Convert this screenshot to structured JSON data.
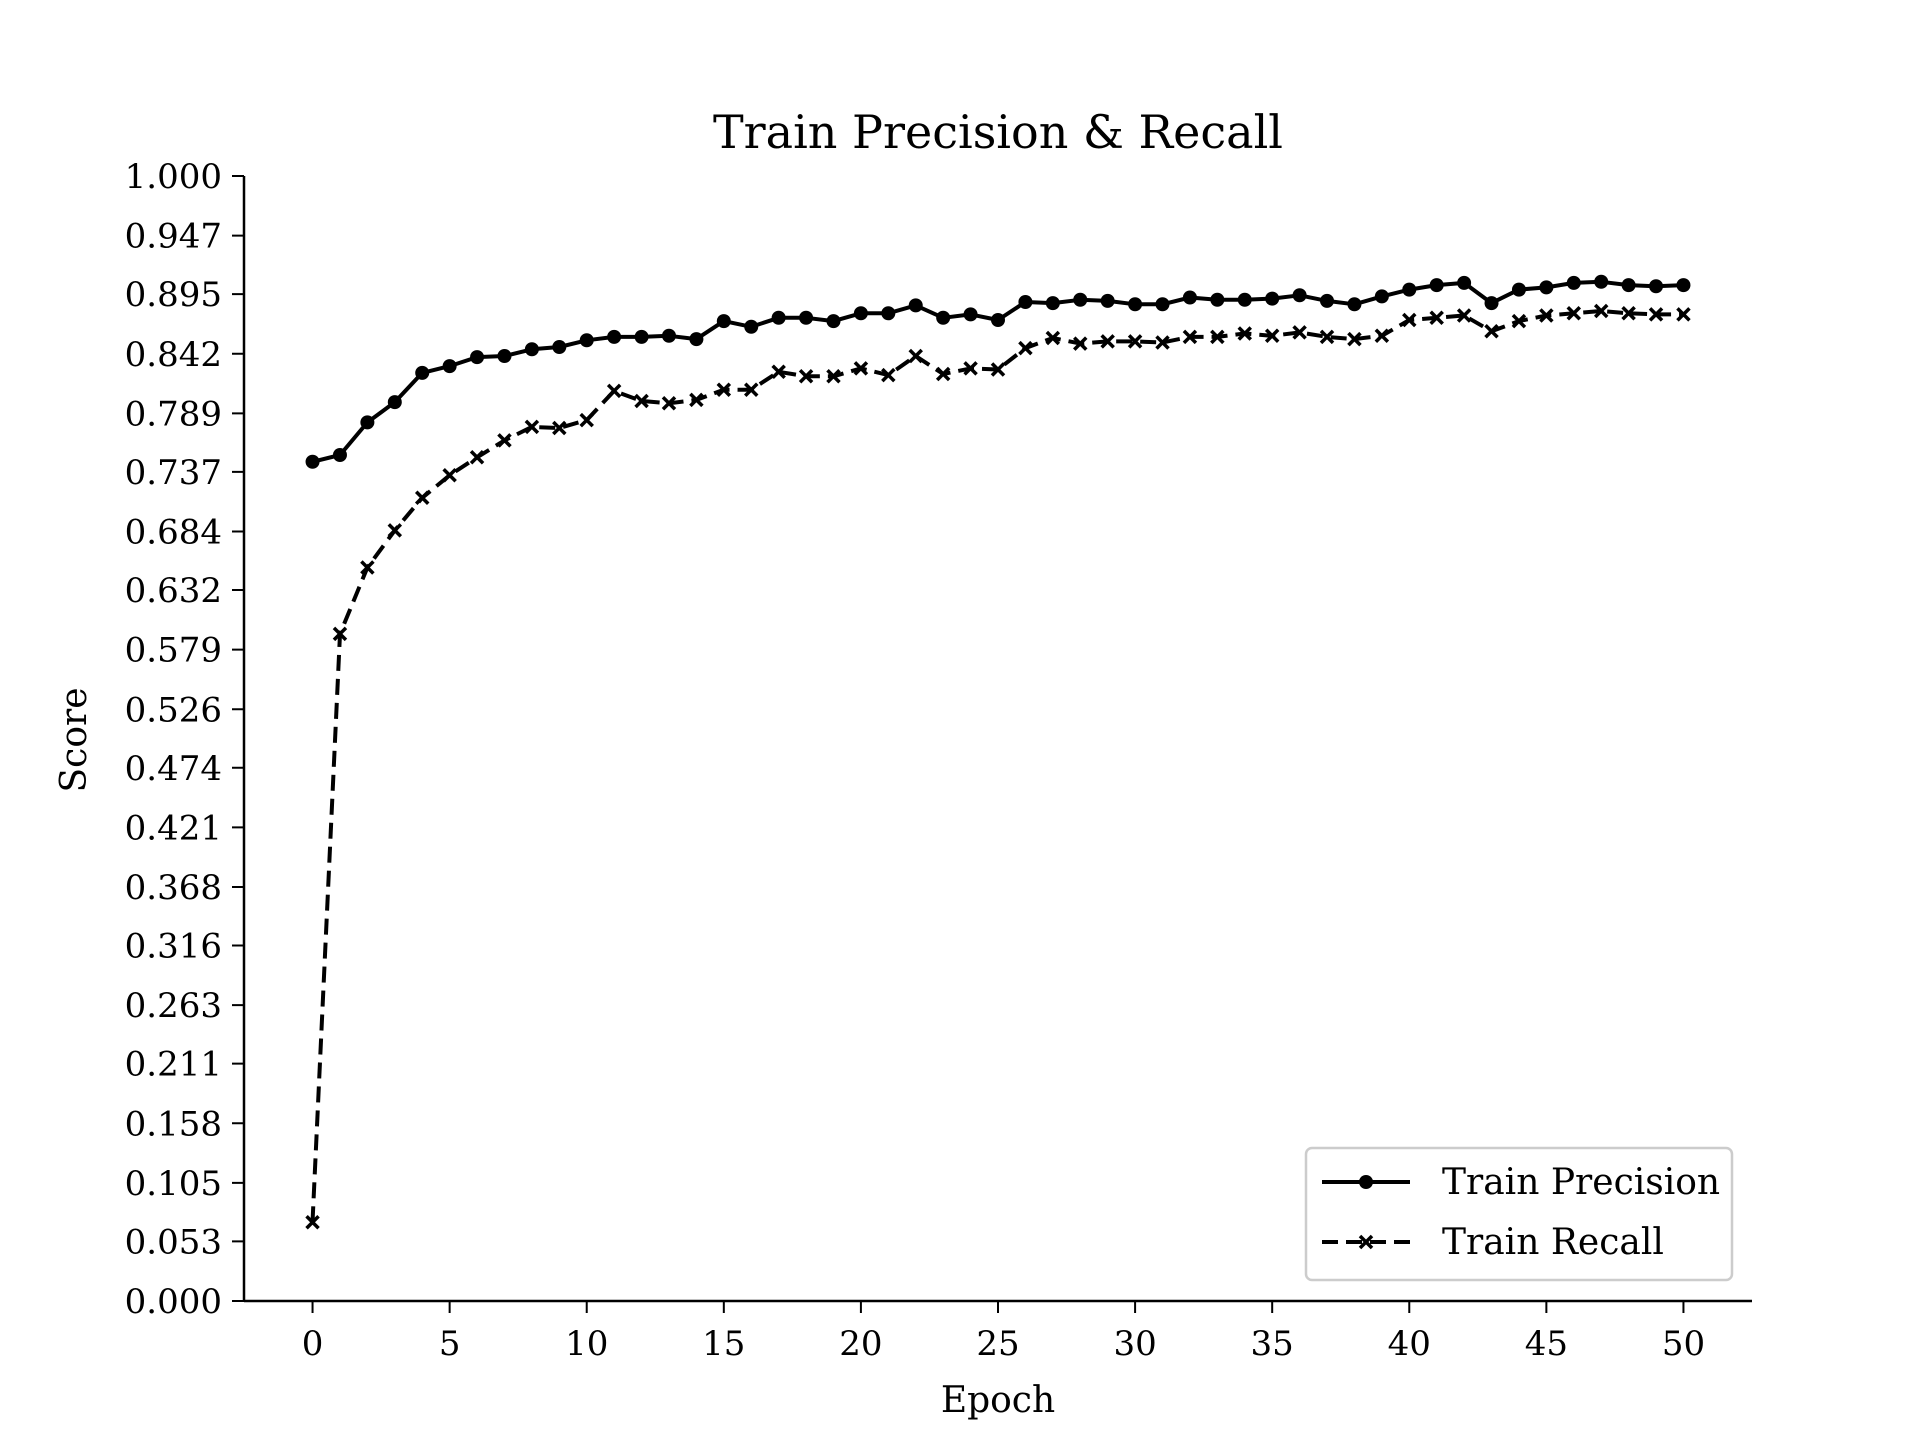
{
  "chart_data": {
    "type": "line",
    "title": "Train Precision & Recall",
    "xlabel": "Epoch",
    "ylabel": "Score",
    "xlim": [
      -2.5,
      52.5
    ],
    "ylim": [
      0,
      1
    ],
    "xticks": [
      0,
      5,
      10,
      15,
      20,
      25,
      30,
      35,
      40,
      45,
      50
    ],
    "yticks": [
      "0.000",
      "0.053",
      "0.105",
      "0.158",
      "0.211",
      "0.263",
      "0.316",
      "0.368",
      "0.421",
      "0.474",
      "0.526",
      "0.579",
      "0.632",
      "0.684",
      "0.737",
      "0.789",
      "0.842",
      "0.895",
      "0.947",
      "1.000"
    ],
    "grid": false,
    "legend_position": "lower-right",
    "x": [
      0,
      1,
      2,
      3,
      4,
      5,
      6,
      7,
      8,
      9,
      10,
      11,
      12,
      13,
      14,
      15,
      16,
      17,
      18,
      19,
      20,
      21,
      22,
      23,
      24,
      25,
      26,
      27,
      28,
      29,
      30,
      31,
      32,
      33,
      34,
      35,
      36,
      37,
      38,
      39,
      40,
      41,
      42,
      43,
      44,
      45,
      46,
      47,
      48,
      49,
      50
    ],
    "series": [
      {
        "name": "Train Precision",
        "style": "solid",
        "marker": "circle",
        "color": "#000000",
        "values": [
          0.746,
          0.752,
          0.781,
          0.799,
          0.825,
          0.831,
          0.839,
          0.84,
          0.846,
          0.848,
          0.854,
          0.857,
          0.857,
          0.858,
          0.855,
          0.871,
          0.866,
          0.874,
          0.874,
          0.871,
          0.878,
          0.878,
          0.885,
          0.874,
          0.877,
          0.872,
          0.888,
          0.887,
          0.89,
          0.889,
          0.886,
          0.886,
          0.892,
          0.89,
          0.89,
          0.891,
          0.894,
          0.889,
          0.886,
          0.893,
          0.899,
          0.903,
          0.905,
          0.887,
          0.899,
          0.901,
          0.905,
          0.906,
          0.903,
          0.902,
          0.903
        ]
      },
      {
        "name": "Train Recall",
        "style": "dashed",
        "marker": "x",
        "color": "#000000",
        "values": [
          0.07,
          0.593,
          0.652,
          0.685,
          0.714,
          0.734,
          0.75,
          0.765,
          0.777,
          0.776,
          0.783,
          0.809,
          0.8,
          0.798,
          0.801,
          0.81,
          0.81,
          0.826,
          0.822,
          0.822,
          0.829,
          0.823,
          0.84,
          0.824,
          0.829,
          0.828,
          0.847,
          0.856,
          0.851,
          0.853,
          0.853,
          0.852,
          0.857,
          0.857,
          0.86,
          0.858,
          0.861,
          0.857,
          0.855,
          0.858,
          0.872,
          0.874,
          0.876,
          0.862,
          0.871,
          0.876,
          0.878,
          0.88,
          0.878,
          0.877,
          0.877
        ]
      }
    ]
  }
}
